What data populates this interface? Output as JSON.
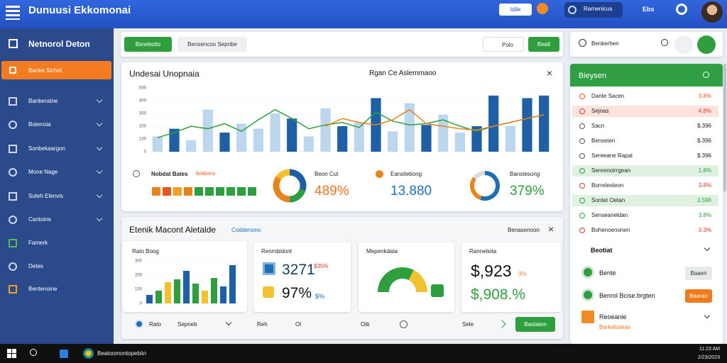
{
  "topbar": {
    "title": "Dunuusi Ekkomonai",
    "button": "Idile",
    "user": "Rarnenicus",
    "badge": "Ebs"
  },
  "sidebar": {
    "header": "Netnorol Deton",
    "active": "Banke Sichet",
    "items": [
      "Banberatne",
      "Botenoia",
      "Sonbekaargon",
      "Mone Nage",
      "Suteh Elenvis",
      "Cantoine",
      "Famerk",
      "Detes",
      "Bentenoine"
    ]
  },
  "toolbar": {
    "primary": "Bsnebotts",
    "secondary": "Bensencoo Sepnbe",
    "icon_button": "Polo",
    "action": "Bealt"
  },
  "overview": {
    "title": "Undesai Unopnaia",
    "subtitle": "Rgan Ce Aslemmaoo",
    "chart": {
      "type": "bar-line",
      "ylim": [
        0,
        500
      ],
      "yticks": [
        0,
        100,
        200,
        300,
        400,
        500
      ],
      "bars": {
        "values": [
          120,
          180,
          90,
          330,
          150,
          220,
          180,
          300,
          260,
          120,
          340,
          200,
          230,
          420,
          160,
          380,
          210,
          290,
          150,
          200,
          440,
          200,
          420,
          440
        ],
        "colors": [
          "#bcd6ee",
          "#1f5fa6",
          "#bcd6ee",
          "#bcd6ee",
          "#1f5fa6",
          "#bcd6ee",
          "#bcd6ee",
          "#bcd6ee",
          "#1f5fa6",
          "#bcd6ee",
          "#bcd6ee",
          "#1f5fa6",
          "#bcd6ee",
          "#1f5fa6",
          "#bcd6ee",
          "#bcd6ee",
          "#1f5fa6",
          "#bcd6ee",
          "#bcd6ee",
          "#1f5fa6",
          "#1f5fa6",
          "#bcd6ee",
          "#1f5fa6",
          "#1f5fa6"
        ]
      },
      "lines": [
        {
          "color": "#2e9e3e",
          "values": [
            110,
            150,
            200,
            180,
            220,
            160,
            250,
            330,
            260,
            180,
            210,
            230,
            190,
            310,
            240,
            210,
            220,
            250,
            200,
            160,
            200,
            230,
            260,
            290
          ]
        },
        {
          "color": "#e8841e",
          "values": [
            null,
            null,
            null,
            null,
            null,
            null,
            null,
            null,
            null,
            null,
            200,
            260,
            230,
            210,
            250,
            330,
            220,
            200,
            180,
            170,
            200,
            230,
            260,
            290
          ]
        }
      ]
    },
    "kpis": {
      "bates_label": "Nobdat Bates",
      "bates_note": "Bnkbens",
      "cut_label": "Beon Cut",
      "cut_value": "489%",
      "count_label": "Eansitetiong",
      "count_value": "13.880",
      "share_label": "Banstesong",
      "share_value": "379%"
    },
    "donut_a": {
      "values": [
        30,
        20,
        35,
        15
      ],
      "colors": [
        "#1f5fa6",
        "#2e9e3e",
        "#e8841e",
        "#f2c12e"
      ]
    },
    "donut_b": {
      "values": [
        55,
        30,
        15
      ],
      "colors": [
        "#1f6fb5",
        "#e8841e",
        "#d8dde3"
      ]
    }
  },
  "detail": {
    "title": "Etenik Macont Aletalde",
    "tag": "Coddenono",
    "action": "Benasenoon",
    "rate_card": {
      "title": "Rato Boog",
      "chart": {
        "type": "bar",
        "ylim": [
          0,
          300
        ],
        "yticks": [
          0,
          100,
          200,
          300
        ],
        "values": [
          60,
          90,
          150,
          170,
          230,
          140,
          90,
          180,
          120,
          270
        ],
        "colors": [
          "#1f5fa6",
          "#2e9e3e",
          "#f2c12e",
          "#2e9e3e",
          "#1f5fa6",
          "#2e9e3e",
          "#f2c12e",
          "#2e9e3e",
          "#1f5fa6",
          "#1f5fa6"
        ]
      }
    },
    "count_card": {
      "title": "Renmbidont",
      "value_a": "3271",
      "note_a": "$35%",
      "value_b": "97%",
      "note_b": "$%"
    },
    "gauge_card": {
      "title": "Mepenkdata",
      "values": [
        65,
        35
      ],
      "colors": [
        "#2e9e3e",
        "#f2c12e"
      ]
    },
    "money_card": {
      "title": "Ranneliota",
      "value_a": "$,923",
      "note_a": "3%",
      "value_b": "$,908.%"
    },
    "footer": {
      "rate": "Rato",
      "select": "Sepneb",
      "reh": "Reh",
      "ol": "Ol",
      "oib": "Oib",
      "sele": "Sele",
      "button": "Bastaten"
    }
  },
  "right": {
    "search_label": "Benkerhen",
    "header": "Bieysen",
    "rows": [
      {
        "label": "Dante Sacen",
        "value": "3.8%",
        "color": "#e8541e",
        "highlight": null
      },
      {
        "label": "Sejnas",
        "value": "4.8%",
        "color": "#d9362b",
        "highlight": "#fde3dc"
      },
      {
        "label": "Sacn",
        "value": "$.396",
        "color": "#222222",
        "highlight": null
      },
      {
        "label": "Benseien",
        "value": "$.396",
        "color": "#222222",
        "highlight": null
      },
      {
        "label": "Sereeane Rapal",
        "value": "$.396",
        "color": "#222222",
        "highlight": null
      },
      {
        "label": "Senrenoirrgean",
        "value": "1.8%",
        "color": "#2e9e3e",
        "highlight": "#dff2e1"
      },
      {
        "label": "Borrelesteon",
        "value": "3.8%",
        "color": "#d9362b",
        "highlight": null
      },
      {
        "label": "Sontet Oetan",
        "value": "3.596",
        "color": "#2e9e3e",
        "highlight": "#dff2e1"
      },
      {
        "label": "Senseaneldan",
        "value": "3.8%",
        "color": "#2e9e3e",
        "highlight": null
      },
      {
        "label": "Bohenoenonen",
        "value": "3.3%",
        "color": "#d9362b",
        "highlight": null
      }
    ],
    "group": "Beotiat",
    "bente": "Bente",
    "bente_button": "Baaen",
    "alert": "Benrol Bcise.brgten",
    "alert_button": "Baaran",
    "report": "Reoeanie",
    "report_note": "Barkeltaleas"
  },
  "taskbar": {
    "app": "Beatoomontopebiin",
    "time": "11:23 AM",
    "date": "2/23/2023"
  }
}
